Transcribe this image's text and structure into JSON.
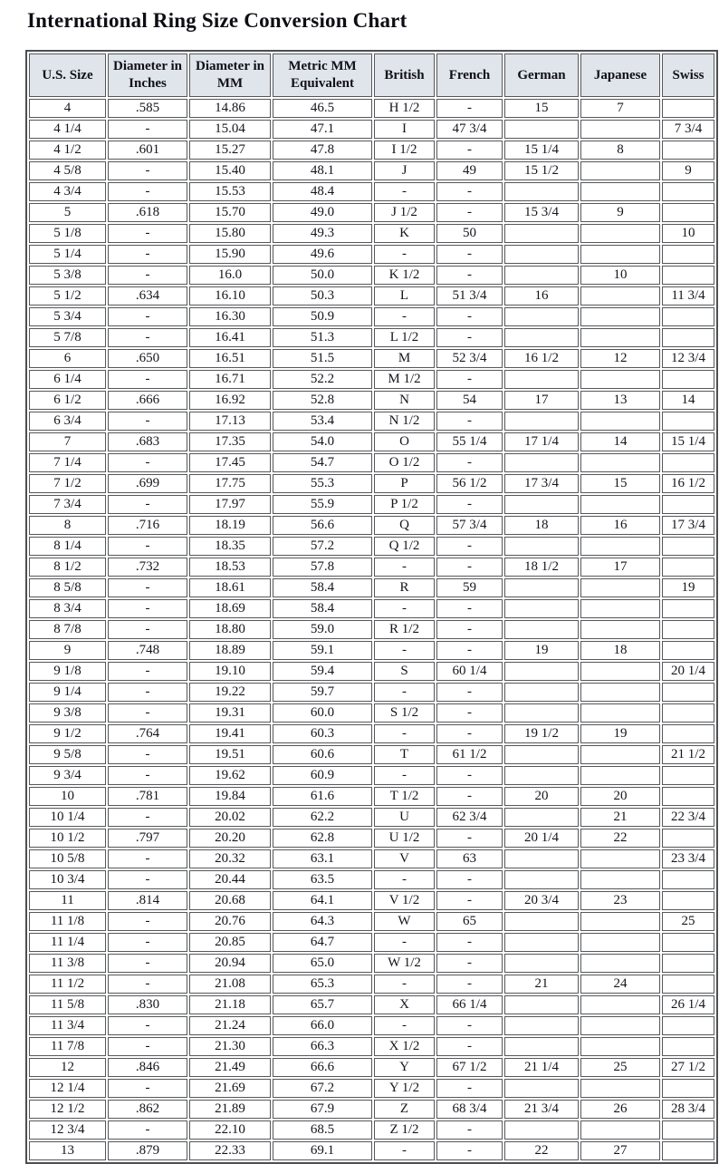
{
  "page": {
    "title": "International Ring Size Conversion Chart"
  },
  "colors": {
    "header_bg": "#dfe5ea",
    "cell_border": "#55575a",
    "outer_border": "#4d4f52",
    "text": "#14141c",
    "page_bg": "#ffffff"
  },
  "chart_data": {
    "type": "table",
    "title": "International Ring Size Conversion Chart",
    "columns": [
      "U.S. Size",
      "Diameter in Inches",
      "Diameter in MM",
      "Metric MM Equivalent",
      "British",
      "French",
      "German",
      "Japanese",
      "Swiss"
    ],
    "rows": [
      [
        "4",
        ".585",
        "14.86",
        "46.5",
        "H 1/2",
        "-",
        "15",
        "7",
        ""
      ],
      [
        "4 1/4",
        "-",
        "15.04",
        "47.1",
        "I",
        "47 3/4",
        "",
        "",
        "7 3/4"
      ],
      [
        "4 1/2",
        ".601",
        "15.27",
        "47.8",
        "I 1/2",
        "-",
        "15 1/4",
        "8",
        ""
      ],
      [
        "4 5/8",
        "-",
        "15.40",
        "48.1",
        "J",
        "49",
        "15 1/2",
        "",
        "9"
      ],
      [
        "4 3/4",
        "-",
        "15.53",
        "48.4",
        "-",
        "-",
        "",
        "",
        ""
      ],
      [
        "5",
        ".618",
        "15.70",
        "49.0",
        "J 1/2",
        "-",
        "15 3/4",
        "9",
        ""
      ],
      [
        "5 1/8",
        "-",
        "15.80",
        "49.3",
        "K",
        "50",
        "",
        "",
        "10"
      ],
      [
        "5 1/4",
        "-",
        "15.90",
        "49.6",
        "-",
        "-",
        "",
        "",
        ""
      ],
      [
        "5 3/8",
        "-",
        "16.0",
        "50.0",
        "K 1/2",
        "-",
        "",
        "10",
        ""
      ],
      [
        "5 1/2",
        ".634",
        "16.10",
        "50.3",
        "L",
        "51 3/4",
        "16",
        "",
        "11 3/4"
      ],
      [
        "5 3/4",
        "-",
        "16.30",
        "50.9",
        "-",
        "-",
        "",
        "",
        ""
      ],
      [
        "5 7/8",
        "-",
        "16.41",
        "51.3",
        "L 1/2",
        "-",
        "",
        "",
        ""
      ],
      [
        "6",
        ".650",
        "16.51",
        "51.5",
        "M",
        "52 3/4",
        "16 1/2",
        "12",
        "12 3/4"
      ],
      [
        "6 1/4",
        "-",
        "16.71",
        "52.2",
        "M 1/2",
        "-",
        "",
        "",
        ""
      ],
      [
        "6 1/2",
        ".666",
        "16.92",
        "52.8",
        "N",
        "54",
        "17",
        "13",
        "14"
      ],
      [
        "6 3/4",
        "-",
        "17.13",
        "53.4",
        "N 1/2",
        "-",
        "",
        "",
        ""
      ],
      [
        "7",
        ".683",
        "17.35",
        "54.0",
        "O",
        "55 1/4",
        "17 1/4",
        "14",
        "15 1/4"
      ],
      [
        "7 1/4",
        "-",
        "17.45",
        "54.7",
        "O 1/2",
        "-",
        "",
        "",
        ""
      ],
      [
        "7 1/2",
        ".699",
        "17.75",
        "55.3",
        "P",
        "56 1/2",
        "17 3/4",
        "15",
        "16 1/2"
      ],
      [
        "7 3/4",
        "-",
        "17.97",
        "55.9",
        "P 1/2",
        "-",
        "",
        "",
        ""
      ],
      [
        "8",
        ".716",
        "18.19",
        "56.6",
        "Q",
        "57 3/4",
        "18",
        "16",
        "17 3/4"
      ],
      [
        "8 1/4",
        "-",
        "18.35",
        "57.2",
        "Q 1/2",
        "-",
        "",
        "",
        ""
      ],
      [
        "8 1/2",
        ".732",
        "18.53",
        "57.8",
        "-",
        "-",
        "18 1/2",
        "17",
        ""
      ],
      [
        "8 5/8",
        "-",
        "18.61",
        "58.4",
        "R",
        "59",
        "",
        "",
        "19"
      ],
      [
        "8 3/4",
        "-",
        "18.69",
        "58.4",
        "-",
        "-",
        "",
        "",
        ""
      ],
      [
        "8 7/8",
        "-",
        "18.80",
        "59.0",
        "R 1/2",
        "-",
        "",
        "",
        ""
      ],
      [
        "9",
        ".748",
        "18.89",
        "59.1",
        "-",
        "-",
        "19",
        "18",
        ""
      ],
      [
        "9 1/8",
        "-",
        "19.10",
        "59.4",
        "S",
        "60 1/4",
        "",
        "",
        "20 1/4"
      ],
      [
        "9 1/4",
        "-",
        "19.22",
        "59.7",
        "-",
        "-",
        "",
        "",
        ""
      ],
      [
        "9 3/8",
        "-",
        "19.31",
        "60.0",
        "S 1/2",
        "-",
        "",
        "",
        ""
      ],
      [
        "9 1/2",
        ".764",
        "19.41",
        "60.3",
        "-",
        "-",
        "19 1/2",
        "19",
        ""
      ],
      [
        "9 5/8",
        "-",
        "19.51",
        "60.6",
        "T",
        "61 1/2",
        "",
        "",
        "21 1/2"
      ],
      [
        "9 3/4",
        "-",
        "19.62",
        "60.9",
        "-",
        "-",
        "",
        "",
        ""
      ],
      [
        "10",
        ".781",
        "19.84",
        "61.6",
        "T 1/2",
        "-",
        "20",
        "20",
        ""
      ],
      [
        "10 1/4",
        "-",
        "20.02",
        "62.2",
        "U",
        "62 3/4",
        "",
        "21",
        "22 3/4"
      ],
      [
        "10 1/2",
        ".797",
        "20.20",
        "62.8",
        "U 1/2",
        "-",
        "20 1/4",
        "22",
        ""
      ],
      [
        "10 5/8",
        "-",
        "20.32",
        "63.1",
        "V",
        "63",
        "",
        "",
        "23 3/4"
      ],
      [
        "10 3/4",
        "-",
        "20.44",
        "63.5",
        "-",
        "-",
        "",
        "",
        ""
      ],
      [
        "11",
        ".814",
        "20.68",
        "64.1",
        "V 1/2",
        "-",
        "20 3/4",
        "23",
        ""
      ],
      [
        "11 1/8",
        "-",
        "20.76",
        "64.3",
        "W",
        "65",
        "",
        "",
        "25"
      ],
      [
        "11 1/4",
        "-",
        "20.85",
        "64.7",
        "-",
        "-",
        "",
        "",
        ""
      ],
      [
        "11 3/8",
        "-",
        "20.94",
        "65.0",
        "W 1/2",
        "-",
        "",
        "",
        ""
      ],
      [
        "11 1/2",
        "-",
        "21.08",
        "65.3",
        "-",
        "-",
        "21",
        "24",
        ""
      ],
      [
        "11 5/8",
        ".830",
        "21.18",
        "65.7",
        "X",
        "66 1/4",
        "",
        "",
        "26 1/4"
      ],
      [
        "11 3/4",
        "-",
        "21.24",
        "66.0",
        "-",
        "-",
        "",
        "",
        ""
      ],
      [
        "11 7/8",
        "-",
        "21.30",
        "66.3",
        "X 1/2",
        "-",
        "",
        "",
        ""
      ],
      [
        "12",
        ".846",
        "21.49",
        "66.6",
        "Y",
        "67 1/2",
        "21 1/4",
        "25",
        "27 1/2"
      ],
      [
        "12 1/4",
        "-",
        "21.69",
        "67.2",
        "Y 1/2",
        "-",
        "",
        "",
        ""
      ],
      [
        "12 1/2",
        ".862",
        "21.89",
        "67.9",
        "Z",
        "68 3/4",
        "21 3/4",
        "26",
        "28 3/4"
      ],
      [
        "12 3/4",
        "-",
        "22.10",
        "68.5",
        "Z 1/2",
        "-",
        "",
        "",
        ""
      ],
      [
        "13",
        ".879",
        "22.33",
        "69.1",
        "-",
        "-",
        "22",
        "27",
        ""
      ]
    ]
  }
}
